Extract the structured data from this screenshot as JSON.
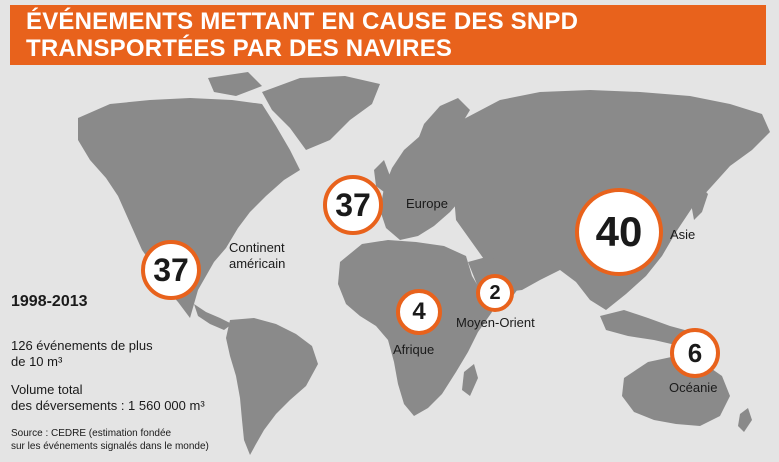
{
  "title": {
    "line1": "ÉVÉNEMENTS METTANT EN CAUSE DES SNPD",
    "line2": "TRANSPORTÉES PAR DES NAVIRES"
  },
  "colors": {
    "accent": "#e8621c",
    "land": "#8a8a8a",
    "background": "#e4e4e4"
  },
  "regions": [
    {
      "id": "americas",
      "count": "37",
      "label_lines": [
        "Continent",
        "américain"
      ]
    },
    {
      "id": "europe",
      "count": "37",
      "label_lines": [
        "Europe"
      ]
    },
    {
      "id": "asia",
      "count": "40",
      "label_lines": [
        "Asie"
      ]
    },
    {
      "id": "africa",
      "count": "4",
      "label_lines": [
        "Afrique"
      ]
    },
    {
      "id": "middle-east",
      "count": "2",
      "label_lines": [
        "Moyen-Orient"
      ]
    },
    {
      "id": "oceania",
      "count": "6",
      "label_lines": [
        "Océanie"
      ]
    }
  ],
  "summary": {
    "period": "1998-2013",
    "events_line1": "126 événements de plus",
    "events_line2": "de 10 m³",
    "volume_line1": "Volume total",
    "volume_line2": "des déversements : 1 560 000 m³",
    "source_line1": "Source : CEDRE (estimation fondée",
    "source_line2": "sur les événements signalés dans le monde)"
  }
}
